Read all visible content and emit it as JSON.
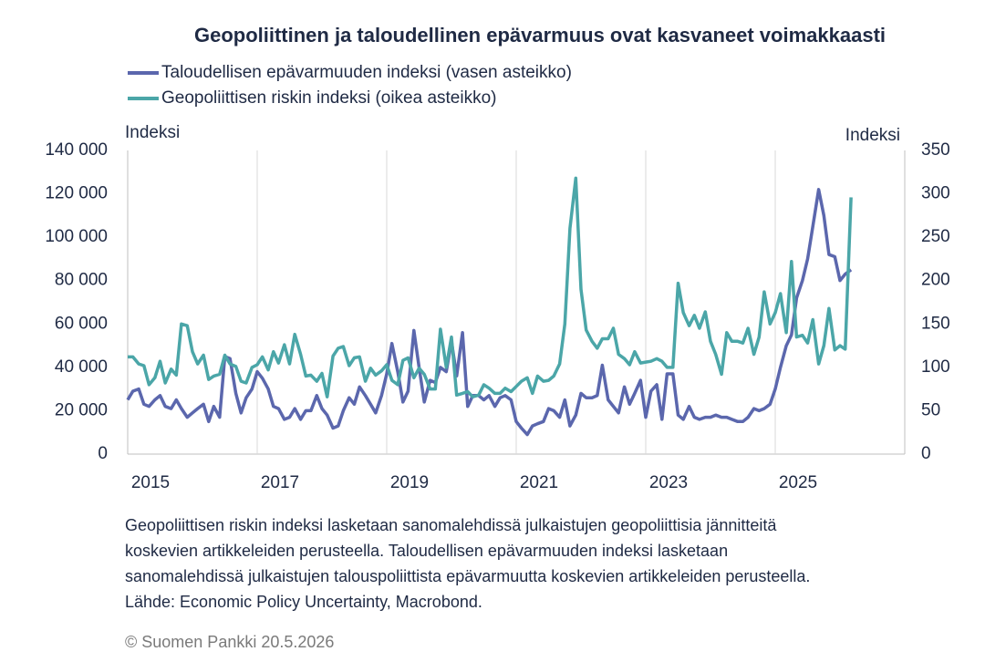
{
  "chart_data": {
    "type": "line",
    "title": "Geopoliittinen  ja taloudellinen epävarmuus ovat kasvaneet voimakkaasti",
    "y_label": "Indeksi",
    "y2_label": "Indeksi",
    "x": [
      2015.0,
      2015.08,
      2015.17,
      2015.25,
      2015.33,
      2015.42,
      2015.5,
      2015.58,
      2015.67,
      2015.75,
      2015.83,
      2015.92,
      2016.0,
      2016.08,
      2016.17,
      2016.25,
      2016.33,
      2016.42,
      2016.5,
      2016.58,
      2016.67,
      2016.75,
      2016.83,
      2016.92,
      2017.0,
      2017.08,
      2017.17,
      2017.25,
      2017.33,
      2017.42,
      2017.5,
      2017.58,
      2017.67,
      2017.75,
      2017.83,
      2017.92,
      2018.0,
      2018.08,
      2018.17,
      2018.25,
      2018.33,
      2018.42,
      2018.5,
      2018.58,
      2018.67,
      2018.75,
      2018.83,
      2018.92,
      2019.0,
      2019.08,
      2019.17,
      2019.25,
      2019.33,
      2019.42,
      2019.5,
      2019.58,
      2019.67,
      2019.75,
      2019.83,
      2019.92,
      2020.0,
      2020.08,
      2020.17,
      2020.25,
      2020.33,
      2020.42,
      2020.5,
      2020.58,
      2020.67,
      2020.75,
      2020.83,
      2020.92,
      2021.0,
      2021.08,
      2021.17,
      2021.25,
      2021.33,
      2021.42,
      2021.5,
      2021.58,
      2021.67,
      2021.75,
      2021.83,
      2021.92,
      2022.0,
      2022.08,
      2022.17,
      2022.25,
      2022.33,
      2022.42,
      2022.5,
      2022.58,
      2022.67,
      2022.75,
      2022.83,
      2022.92,
      2023.0,
      2023.08,
      2023.17,
      2023.25,
      2023.33,
      2023.42,
      2023.5,
      2023.58,
      2023.67,
      2023.75,
      2023.83,
      2023.92,
      2024.0,
      2024.08,
      2024.17,
      2024.25,
      2024.33,
      2024.42,
      2024.5,
      2024.58,
      2024.67,
      2024.75,
      2024.83,
      2024.92,
      2025.0,
      2025.08,
      2025.17,
      2025.25,
      2025.33,
      2025.42,
      2025.5,
      2025.58,
      2025.67,
      2025.75,
      2025.83,
      2025.92,
      2026.0,
      2026.08,
      2026.17
    ],
    "series": [
      {
        "name": "Taloudellisen epävarmuuden indeksi (vasen asteikko)",
        "color": "#5b67ad",
        "axis": "y",
        "values": [
          25000,
          29000,
          30000,
          23000,
          22000,
          25000,
          27000,
          22000,
          21000,
          25000,
          21000,
          17000,
          19000,
          21000,
          23000,
          15000,
          22000,
          17000,
          45000,
          44000,
          28000,
          19000,
          26000,
          30000,
          38000,
          35000,
          30000,
          22000,
          21000,
          16000,
          17000,
          21000,
          16000,
          20000,
          20000,
          27000,
          21000,
          18000,
          12000,
          13000,
          20000,
          26000,
          23000,
          31000,
          27000,
          23000,
          19000,
          27000,
          37000,
          51000,
          38000,
          24000,
          29000,
          57000,
          40000,
          24000,
          34000,
          33000,
          40000,
          38000,
          52000,
          36000,
          56000,
          22000,
          27000,
          27000,
          25000,
          27000,
          22000,
          26000,
          27000,
          25000,
          15000,
          12000,
          9000,
          13000,
          14000,
          15000,
          21000,
          20000,
          17000,
          25000,
          13000,
          18000,
          28000,
          26000,
          26000,
          27000,
          41000,
          25000,
          22000,
          19000,
          31000,
          23000,
          28000,
          34000,
          17000,
          29000,
          32000,
          16000,
          37000,
          37000,
          18000,
          16000,
          22000,
          17000,
          16000,
          17000,
          17000,
          18000,
          17000,
          17000,
          16000,
          15000,
          15000,
          17000,
          21000,
          20000,
          21000,
          23000,
          30000,
          40000,
          50000,
          55000,
          72000,
          80000,
          90000,
          105000,
          122000,
          110000,
          92000,
          91000,
          80000,
          83000,
          85000
        ]
      },
      {
        "name": "Geopoliittisen riskin indeksi (oikea asteikko)",
        "color": "#4ba6a8",
        "axis": "y2",
        "values": [
          112,
          112,
          104,
          102,
          80,
          88,
          107,
          82,
          98,
          91,
          150,
          148,
          118,
          104,
          114,
          86,
          90,
          92,
          114,
          104,
          101,
          84,
          82,
          100,
          103,
          112,
          97,
          118,
          105,
          126,
          104,
          138,
          115,
          90,
          91,
          84,
          93,
          66,
          113,
          122,
          124,
          102,
          111,
          112,
          84,
          99,
          91,
          96,
          103,
          85,
          80,
          108,
          111,
          88,
          99,
          92,
          75,
          75,
          144,
          100,
          135,
          68,
          70,
          72,
          66,
          68,
          80,
          76,
          70,
          70,
          76,
          72,
          78,
          84,
          88,
          70,
          90,
          84,
          85,
          90,
          104,
          150,
          260,
          318,
          190,
          143,
          130,
          122,
          133,
          133,
          145,
          115,
          110,
          103,
          118,
          105,
          106,
          107,
          110,
          107,
          100,
          100,
          197,
          163,
          148,
          160,
          145,
          164,
          130,
          115,
          92,
          140,
          130,
          130,
          128,
          145,
          115,
          135,
          187,
          150,
          163,
          185,
          140,
          222,
          135,
          137,
          128,
          155,
          104,
          125,
          168,
          120,
          125,
          121,
          296
        ]
      }
    ],
    "xlim": [
      2015,
      2027
    ],
    "xticks": [
      2015,
      2017,
      2019,
      2021,
      2023,
      2025
    ],
    "ylim": [
      0,
      140000
    ],
    "yticks": [
      0,
      {
        "value": 20000,
        "label": "20 000"
      },
      {
        "value": 40000,
        "label": "40 000"
      },
      {
        "value": 60000,
        "label": "60 000"
      },
      {
        "value": 80000,
        "label": "80 000"
      },
      {
        "value": 100000,
        "label": "100 000"
      },
      {
        "value": 120000,
        "label": "120 000"
      },
      {
        "value": 140000,
        "label": "140 000"
      }
    ],
    "y2lim": [
      0,
      350
    ],
    "y2ticks": [
      0,
      50,
      100,
      150,
      200,
      250,
      300,
      350
    ],
    "grid": true,
    "notes": [
      "Geopoliittisen riskin indeksi lasketaan sanomalehdissä julkaistujen geopoliittisia jännitteitä",
      "koskevien artikkeleiden perusteella. Taloudellisen epävarmuuden indeksi lasketaan",
      "sanomalehdissä julkaistujen talouspoliittista epävarmuutta koskevien artikkeleiden perusteella.",
      "Lähde: Economic Policy Uncertainty, Macrobond."
    ],
    "copyright": "© Suomen Pankki 20.5.2026"
  }
}
